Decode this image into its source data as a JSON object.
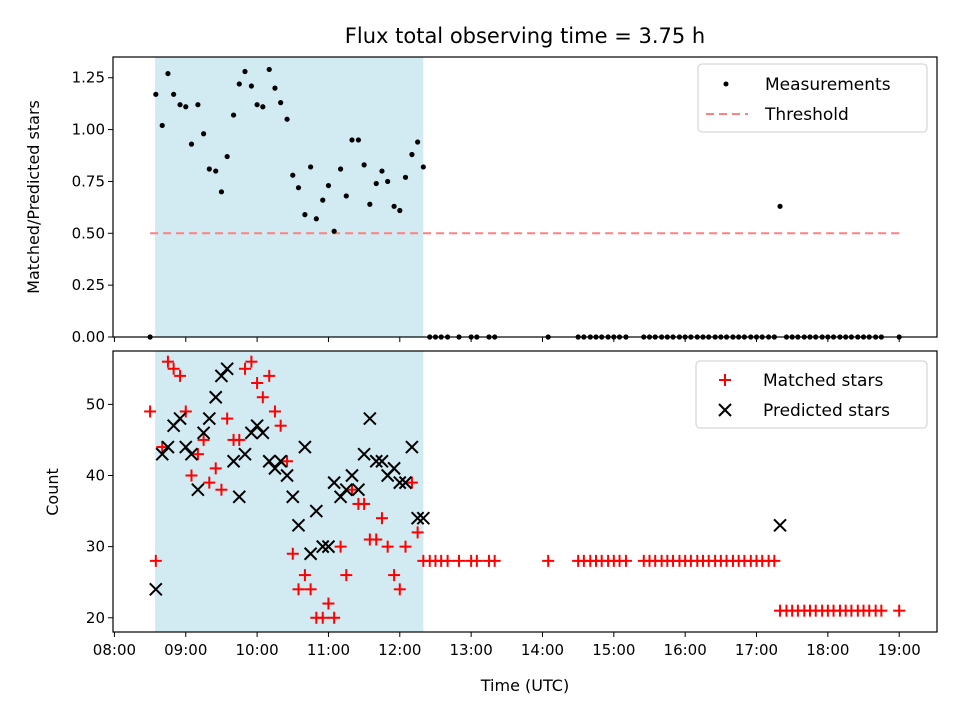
{
  "colors": {
    "shade": "#add8e6",
    "threshold": "#ff8080",
    "measurement": "#000000",
    "matched": "#ff0000",
    "predicted": "#000000"
  },
  "chart_data": {
    "title": "Flux total observing time = 3.75 h",
    "xlabel": "Time (UTC)",
    "x_tick_labels": [
      "08:00",
      "09:00",
      "10:00",
      "11:00",
      "12:00",
      "13:00",
      "14:00",
      "15:00",
      "16:00",
      "17:00",
      "18:00",
      "19:00"
    ],
    "x_ticks_hours": [
      8,
      9,
      10,
      11,
      12,
      13,
      14,
      15,
      16,
      17,
      18,
      19
    ],
    "xlim_hours": [
      7.98,
      19.53
    ],
    "shaded_interval_hours": [
      8.57,
      12.33
    ],
    "top": {
      "type": "scatter",
      "ylabel": "Matched/Predicted stars",
      "ylim": [
        0,
        1.35
      ],
      "y_ticks": [
        0,
        0.25,
        0.5,
        0.75,
        1.0,
        1.25
      ],
      "y_tick_labels": [
        "0.00",
        "0.25",
        "0.50",
        "0.75",
        "1.00",
        "1.25"
      ],
      "threshold": {
        "value": 0.5,
        "x_range": [
          8.5,
          19.0
        ],
        "label": "Threshold"
      },
      "legend": [
        "Measurements",
        "Threshold"
      ],
      "measurements": [
        [
          8.5,
          0.0
        ],
        [
          8.58,
          1.17
        ],
        [
          8.67,
          1.02
        ],
        [
          8.75,
          1.27
        ],
        [
          8.83,
          1.17
        ],
        [
          8.92,
          1.12
        ],
        [
          9.0,
          1.11
        ],
        [
          9.08,
          0.93
        ],
        [
          9.17,
          1.12
        ],
        [
          9.25,
          0.98
        ],
        [
          9.33,
          0.81
        ],
        [
          9.42,
          0.8
        ],
        [
          9.5,
          0.7
        ],
        [
          9.58,
          0.87
        ],
        [
          9.67,
          1.07
        ],
        [
          9.75,
          1.22
        ],
        [
          9.83,
          1.28
        ],
        [
          9.92,
          1.21
        ],
        [
          10.0,
          1.12
        ],
        [
          10.08,
          1.11
        ],
        [
          10.17,
          1.29
        ],
        [
          10.25,
          1.2
        ],
        [
          10.33,
          1.13
        ],
        [
          10.42,
          1.05
        ],
        [
          10.5,
          0.78
        ],
        [
          10.58,
          0.72
        ],
        [
          10.67,
          0.59
        ],
        [
          10.75,
          0.82
        ],
        [
          10.83,
          0.57
        ],
        [
          10.92,
          0.66
        ],
        [
          11.0,
          0.73
        ],
        [
          11.08,
          0.51
        ],
        [
          11.17,
          0.81
        ],
        [
          11.25,
          0.68
        ],
        [
          11.33,
          0.95
        ],
        [
          11.42,
          0.95
        ],
        [
          11.5,
          0.83
        ],
        [
          11.58,
          0.64
        ],
        [
          11.67,
          0.74
        ],
        [
          11.75,
          0.8
        ],
        [
          11.83,
          0.75
        ],
        [
          11.92,
          0.63
        ],
        [
          12.0,
          0.61
        ],
        [
          12.08,
          0.77
        ],
        [
          12.17,
          0.88
        ],
        [
          12.25,
          0.94
        ],
        [
          12.33,
          0.82
        ],
        [
          12.42,
          0.0
        ],
        [
          12.5,
          0.0
        ],
        [
          12.58,
          0.0
        ],
        [
          12.67,
          0.0
        ],
        [
          12.83,
          0.0
        ],
        [
          13.0,
          0.0
        ],
        [
          13.08,
          0.0
        ],
        [
          13.25,
          0.0
        ],
        [
          13.33,
          0.0
        ],
        [
          14.08,
          0.0
        ],
        [
          14.5,
          0.0
        ],
        [
          14.58,
          0.0
        ],
        [
          14.67,
          0.0
        ],
        [
          14.75,
          0.0
        ],
        [
          14.83,
          0.0
        ],
        [
          14.92,
          0.0
        ],
        [
          15.0,
          0.0
        ],
        [
          15.08,
          0.0
        ],
        [
          15.17,
          0.0
        ],
        [
          15.42,
          0.0
        ],
        [
          15.5,
          0.0
        ],
        [
          15.58,
          0.0
        ],
        [
          15.67,
          0.0
        ],
        [
          15.75,
          0.0
        ],
        [
          15.83,
          0.0
        ],
        [
          15.92,
          0.0
        ],
        [
          16.0,
          0.0
        ],
        [
          16.08,
          0.0
        ],
        [
          16.17,
          0.0
        ],
        [
          16.25,
          0.0
        ],
        [
          16.33,
          0.0
        ],
        [
          16.42,
          0.0
        ],
        [
          16.5,
          0.0
        ],
        [
          16.58,
          0.0
        ],
        [
          16.67,
          0.0
        ],
        [
          16.75,
          0.0
        ],
        [
          16.83,
          0.0
        ],
        [
          16.92,
          0.0
        ],
        [
          17.0,
          0.0
        ],
        [
          17.08,
          0.0
        ],
        [
          17.17,
          0.0
        ],
        [
          17.25,
          0.0
        ],
        [
          17.33,
          0.63
        ],
        [
          17.42,
          0.0
        ],
        [
          17.5,
          0.0
        ],
        [
          17.58,
          0.0
        ],
        [
          17.67,
          0.0
        ],
        [
          17.75,
          0.0
        ],
        [
          17.83,
          0.0
        ],
        [
          17.92,
          0.0
        ],
        [
          18.0,
          0.0
        ],
        [
          18.08,
          0.0
        ],
        [
          18.17,
          0.0
        ],
        [
          18.25,
          0.0
        ],
        [
          18.33,
          0.0
        ],
        [
          18.42,
          0.0
        ],
        [
          18.5,
          0.0
        ],
        [
          18.58,
          0.0
        ],
        [
          18.67,
          0.0
        ],
        [
          18.75,
          0.0
        ],
        [
          19.0,
          0.0
        ]
      ]
    },
    "bottom": {
      "type": "scatter",
      "ylabel": "Count",
      "ylim": [
        18,
        57.5
      ],
      "y_ticks": [
        20,
        30,
        40,
        50
      ],
      "y_tick_labels": [
        "20",
        "30",
        "40",
        "50"
      ],
      "legend": [
        "Matched stars",
        "Predicted stars"
      ],
      "matched": [
        [
          8.5,
          49
        ],
        [
          8.58,
          28
        ],
        [
          8.67,
          44
        ],
        [
          8.75,
          56
        ],
        [
          8.83,
          55
        ],
        [
          8.92,
          54
        ],
        [
          9.0,
          49
        ],
        [
          9.08,
          40
        ],
        [
          9.17,
          43
        ],
        [
          9.25,
          45
        ],
        [
          9.33,
          39
        ],
        [
          9.42,
          41
        ],
        [
          9.5,
          38
        ],
        [
          9.58,
          48
        ],
        [
          9.67,
          45
        ],
        [
          9.75,
          45
        ],
        [
          9.83,
          55
        ],
        [
          9.92,
          56
        ],
        [
          10.0,
          53
        ],
        [
          10.08,
          51
        ],
        [
          10.17,
          54
        ],
        [
          10.25,
          49
        ],
        [
          10.33,
          47
        ],
        [
          10.42,
          42
        ],
        [
          10.5,
          29
        ],
        [
          10.58,
          24
        ],
        [
          10.67,
          26
        ],
        [
          10.75,
          24
        ],
        [
          10.83,
          20
        ],
        [
          10.92,
          20
        ],
        [
          11.0,
          22
        ],
        [
          11.08,
          20
        ],
        [
          11.17,
          30
        ],
        [
          11.25,
          26
        ],
        [
          11.33,
          38
        ],
        [
          11.42,
          36
        ],
        [
          11.5,
          36
        ],
        [
          11.58,
          31
        ],
        [
          11.67,
          31
        ],
        [
          11.75,
          34
        ],
        [
          11.83,
          30
        ],
        [
          11.92,
          26
        ],
        [
          12.0,
          24
        ],
        [
          12.08,
          30
        ],
        [
          12.17,
          39
        ],
        [
          12.25,
          32
        ],
        [
          12.33,
          28
        ],
        [
          12.42,
          28
        ],
        [
          12.5,
          28
        ],
        [
          12.58,
          28
        ],
        [
          12.67,
          28
        ],
        [
          12.83,
          28
        ],
        [
          13.0,
          28
        ],
        [
          13.08,
          28
        ],
        [
          13.25,
          28
        ],
        [
          13.33,
          28
        ],
        [
          14.08,
          28
        ],
        [
          14.5,
          28
        ],
        [
          14.58,
          28
        ],
        [
          14.67,
          28
        ],
        [
          14.75,
          28
        ],
        [
          14.83,
          28
        ],
        [
          14.92,
          28
        ],
        [
          15.0,
          28
        ],
        [
          15.08,
          28
        ],
        [
          15.17,
          28
        ],
        [
          15.42,
          28
        ],
        [
          15.5,
          28
        ],
        [
          15.58,
          28
        ],
        [
          15.67,
          28
        ],
        [
          15.75,
          28
        ],
        [
          15.83,
          28
        ],
        [
          15.92,
          28
        ],
        [
          16.0,
          28
        ],
        [
          16.08,
          28
        ],
        [
          16.17,
          28
        ],
        [
          16.25,
          28
        ],
        [
          16.33,
          28
        ],
        [
          16.42,
          28
        ],
        [
          16.5,
          28
        ],
        [
          16.58,
          28
        ],
        [
          16.67,
          28
        ],
        [
          16.75,
          28
        ],
        [
          16.83,
          28
        ],
        [
          16.92,
          28
        ],
        [
          17.0,
          28
        ],
        [
          17.08,
          28
        ],
        [
          17.17,
          28
        ],
        [
          17.25,
          28
        ],
        [
          17.33,
          21
        ],
        [
          17.42,
          21
        ],
        [
          17.5,
          21
        ],
        [
          17.58,
          21
        ],
        [
          17.67,
          21
        ],
        [
          17.75,
          21
        ],
        [
          17.83,
          21
        ],
        [
          17.92,
          21
        ],
        [
          18.0,
          21
        ],
        [
          18.08,
          21
        ],
        [
          18.17,
          21
        ],
        [
          18.25,
          21
        ],
        [
          18.33,
          21
        ],
        [
          18.42,
          21
        ],
        [
          18.5,
          21
        ],
        [
          18.58,
          21
        ],
        [
          18.67,
          21
        ],
        [
          18.75,
          21
        ],
        [
          19.0,
          21
        ]
      ],
      "predicted": [
        [
          8.58,
          24
        ],
        [
          8.67,
          43
        ],
        [
          8.75,
          44
        ],
        [
          8.83,
          47
        ],
        [
          8.92,
          48
        ],
        [
          9.0,
          44
        ],
        [
          9.08,
          43
        ],
        [
          9.17,
          38
        ],
        [
          9.25,
          46
        ],
        [
          9.33,
          48
        ],
        [
          9.42,
          51
        ],
        [
          9.5,
          54
        ],
        [
          9.58,
          55
        ],
        [
          9.67,
          42
        ],
        [
          9.75,
          37
        ],
        [
          9.83,
          43
        ],
        [
          9.92,
          46
        ],
        [
          10.0,
          47
        ],
        [
          10.08,
          46
        ],
        [
          10.17,
          42
        ],
        [
          10.25,
          41
        ],
        [
          10.33,
          42
        ],
        [
          10.42,
          40
        ],
        [
          10.5,
          37
        ],
        [
          10.58,
          33
        ],
        [
          10.67,
          44
        ],
        [
          10.75,
          29
        ],
        [
          10.83,
          35
        ],
        [
          10.92,
          30
        ],
        [
          11.0,
          30
        ],
        [
          11.08,
          39
        ],
        [
          11.17,
          37
        ],
        [
          11.25,
          38
        ],
        [
          11.33,
          40
        ],
        [
          11.42,
          38
        ],
        [
          11.5,
          43
        ],
        [
          11.58,
          48
        ],
        [
          11.67,
          42
        ],
        [
          11.75,
          42
        ],
        [
          11.83,
          40
        ],
        [
          11.92,
          41
        ],
        [
          12.0,
          39
        ],
        [
          12.08,
          39
        ],
        [
          12.17,
          44
        ],
        [
          12.25,
          34
        ],
        [
          12.33,
          34
        ],
        [
          17.33,
          33
        ]
      ]
    }
  }
}
